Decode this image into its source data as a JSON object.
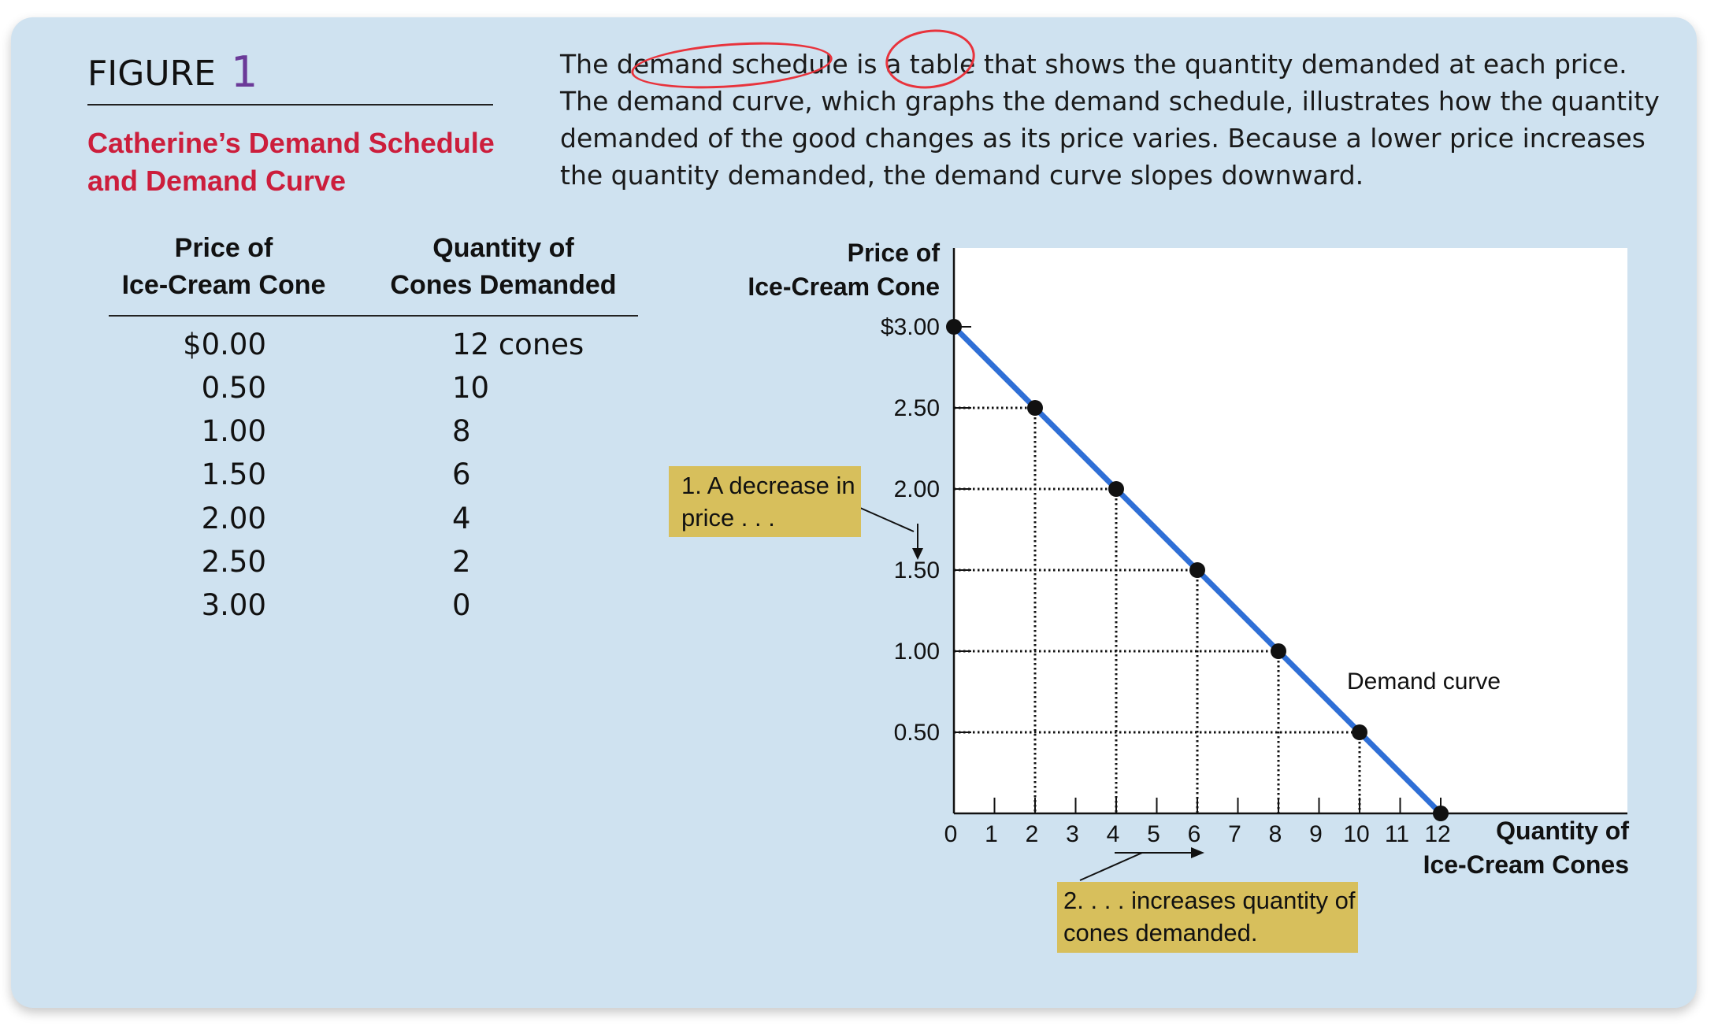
{
  "figure": {
    "word": "FIGURE",
    "number": "1"
  },
  "title_lines": [
    "Catherine’s Demand Schedule",
    "and Demand Curve"
  ],
  "caption": "The demand schedule is a table that shows the quantity demanded at each price. The demand curve, which graphs the demand schedule, illustrates how the quantity demanded of the good changes as its price varies. Because a lower price increases the quantity demanded, the demand curve slopes downward.",
  "schedule": {
    "headers": {
      "price": [
        "Price of",
        "Ice-Cream Cone"
      ],
      "qty": [
        "Quantity of",
        "Cones Demanded"
      ]
    },
    "rows": [
      {
        "price": "$0.00",
        "qty": "12 cones"
      },
      {
        "price": "0.50",
        "qty": "10"
      },
      {
        "price": "1.00",
        "qty": "8"
      },
      {
        "price": "1.50",
        "qty": "6"
      },
      {
        "price": "2.00",
        "qty": "4"
      },
      {
        "price": "2.50",
        "qty": "2"
      },
      {
        "price": "3.00",
        "qty": "0"
      }
    ]
  },
  "annotations": {
    "decrease_lines": [
      "1. A decrease in",
      "price . . ."
    ],
    "increase_lines": [
      "2. . . . increases quantity of",
      "cones demanded."
    ]
  },
  "colors": {
    "panel": "#cfe2f0",
    "curve": "#2f6fd6",
    "highlight": "#e8333c",
    "note": "#d7bf5c",
    "title": "#cc1e3c",
    "figure_number": "#6b3a98"
  },
  "chart_data": {
    "type": "line",
    "x": [
      0,
      2,
      4,
      6,
      8,
      10,
      12
    ],
    "series": [
      {
        "name": "Demand curve",
        "values": [
          3.0,
          2.5,
          2.0,
          1.5,
          1.0,
          0.5,
          0.0
        ]
      }
    ],
    "xlabel_lines": [
      "Quantity of",
      "Ice-Cream Cones"
    ],
    "ylabel_lines": [
      "Price of",
      "Ice-Cream Cone"
    ],
    "x_ticks": [
      "0",
      "1",
      "2",
      "3",
      "4",
      "5",
      "6",
      "7",
      "8",
      "9",
      "10",
      "11",
      "12"
    ],
    "y_ticks": [
      "$3.00",
      "2.50",
      "2.00",
      "1.50",
      "1.00",
      "0.50"
    ],
    "y_tick_values": [
      3.0,
      2.5,
      2.0,
      1.5,
      1.0,
      0.5
    ],
    "xlim": [
      0,
      12
    ],
    "ylim": [
      0,
      3
    ],
    "grid": "dotted guide lines from each point to both axes"
  }
}
